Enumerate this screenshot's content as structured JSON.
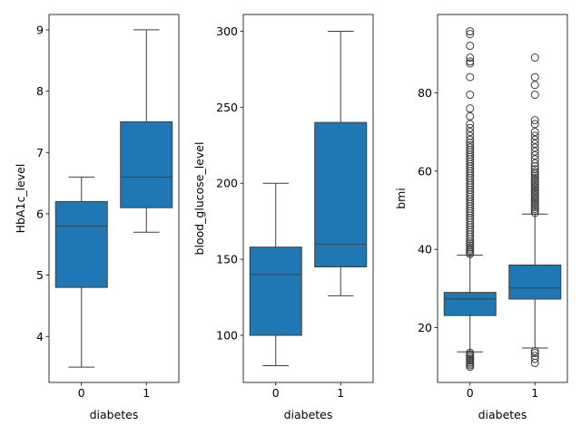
{
  "chart_data": [
    {
      "type": "box",
      "xlabel": "diabetes",
      "ylabel": "HbA1c_level",
      "categories": [
        "0",
        "1"
      ],
      "ylim": [
        3.25,
        9.25
      ],
      "yticks": [
        4,
        5,
        6,
        7,
        8,
        9
      ],
      "color": "#1f77b4",
      "boxes": [
        {
          "category": "0",
          "whislo": 3.5,
          "q1": 4.8,
          "med": 5.8,
          "q3": 6.2,
          "whishi": 6.6,
          "fliers": []
        },
        {
          "category": "1",
          "whislo": 5.7,
          "q1": 6.1,
          "med": 6.6,
          "q3": 7.5,
          "whishi": 9.0,
          "fliers": []
        }
      ]
    },
    {
      "type": "box",
      "xlabel": "diabetes",
      "ylabel": "blood_glucose_level",
      "categories": [
        "0",
        "1"
      ],
      "ylim": [
        69,
        311
      ],
      "yticks": [
        100,
        150,
        200,
        250,
        300
      ],
      "color": "#1f77b4",
      "boxes": [
        {
          "category": "0",
          "whislo": 80,
          "q1": 100,
          "med": 140,
          "q3": 158,
          "whishi": 200,
          "fliers": []
        },
        {
          "category": "1",
          "whislo": 126,
          "q1": 145,
          "med": 160,
          "q3": 240,
          "whishi": 300,
          "fliers": []
        }
      ]
    },
    {
      "type": "box",
      "xlabel": "diabetes",
      "ylabel": "bmi",
      "categories": [
        "0",
        "1"
      ],
      "ylim": [
        6,
        100
      ],
      "yticks": [
        20,
        40,
        60,
        80
      ],
      "color": "#1f77b4",
      "boxes": [
        {
          "category": "0",
          "whislo": 13.8,
          "q1": 23.1,
          "med": 27.3,
          "q3": 29.0,
          "whishi": 38.5,
          "fliers": [
            10.0,
            10.4,
            10.8,
            11.2,
            11.6,
            12.0,
            12.4,
            12.8,
            13.2,
            13.6,
            38.8,
            39.2,
            39.6,
            40.0,
            40.5,
            41.0,
            41.5,
            42.0,
            42.6,
            43.2,
            43.8,
            44.4,
            45.0,
            45.6,
            46.2,
            46.8,
            47.4,
            48.0,
            48.6,
            49.2,
            49.8,
            50.4,
            51.0,
            51.6,
            52.2,
            52.8,
            53.4,
            54.0,
            54.6,
            55.2,
            55.8,
            56.4,
            57.0,
            57.6,
            58.2,
            58.8,
            59.4,
            60.0,
            60.6,
            61.2,
            61.8,
            62.4,
            63.0,
            63.6,
            64.2,
            64.8,
            65.4,
            66.0,
            66.6,
            67.2,
            68.0,
            69.0,
            70.0,
            71.0,
            72.0,
            74.0,
            76.0,
            79.5,
            84.0,
            87.5,
            88.0,
            89.0,
            92.0,
            95.0,
            95.7
          ]
        },
        {
          "category": "1",
          "whislo": 14.8,
          "q1": 27.3,
          "med": 30.1,
          "q3": 36.0,
          "whishi": 49.0,
          "fliers": [
            11.0,
            12.0,
            12.8,
            13.5,
            14.0,
            49.3,
            49.8,
            50.3,
            50.8,
            51.3,
            51.8,
            52.3,
            52.8,
            53.3,
            53.8,
            54.3,
            54.8,
            55.3,
            55.8,
            56.3,
            56.8,
            57.3,
            57.8,
            58.3,
            58.8,
            59.3,
            59.8,
            60.5,
            61.2,
            62.0,
            63.0,
            64.0,
            65.0,
            66.0,
            67.0,
            68.0,
            69.0,
            70.0,
            72.0,
            73.0,
            79.5,
            82.0,
            84.0,
            89.0
          ]
        }
      ]
    }
  ]
}
